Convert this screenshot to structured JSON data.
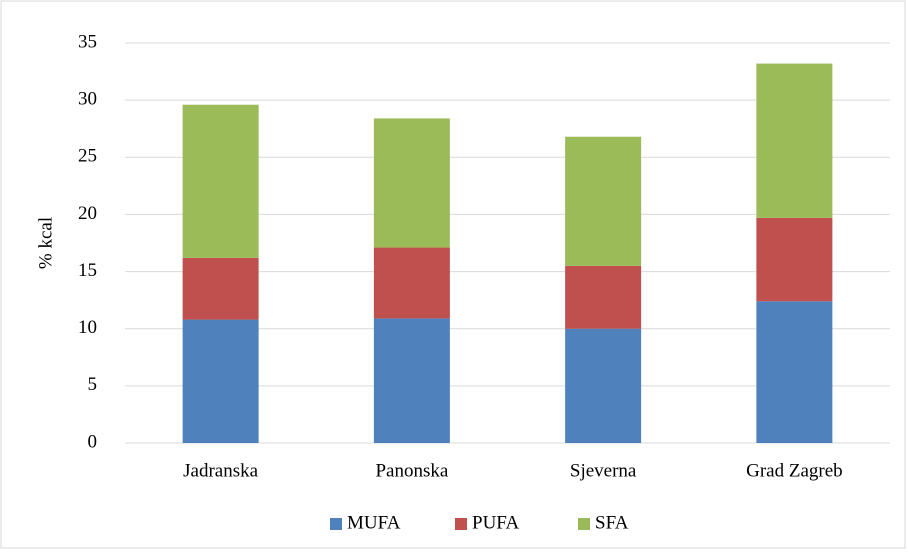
{
  "chart_data": {
    "type": "stacked_bar",
    "y_label": "% kcal",
    "categories": [
      "Jadranska",
      "Panonska",
      "Sjeverna",
      "Grad Zagreb"
    ],
    "series": [
      {
        "name": "MUFA",
        "color": "#4f81bd",
        "values": [
          10.8,
          10.9,
          10.0,
          12.4
        ]
      },
      {
        "name": "PUFA",
        "color": "#c0504d",
        "values": [
          5.4,
          6.2,
          5.5,
          7.3
        ]
      },
      {
        "name": "SFA",
        "color": "#9bbb59",
        "values": [
          13.4,
          11.3,
          11.3,
          13.5
        ]
      }
    ],
    "ylim": [
      0,
      35
    ],
    "yticks": [
      0,
      5,
      10,
      15,
      20,
      25,
      30,
      35
    ],
    "grid": true,
    "legend": "bottom"
  }
}
